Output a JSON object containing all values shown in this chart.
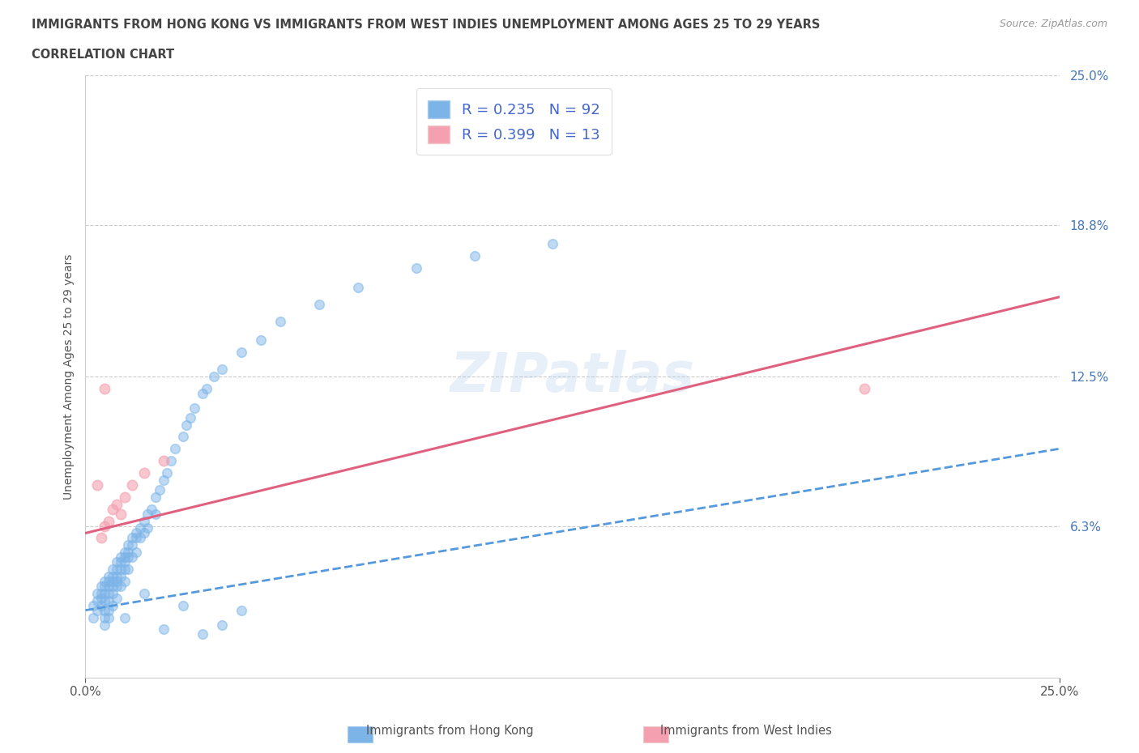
{
  "title_line1": "IMMIGRANTS FROM HONG KONG VS IMMIGRANTS FROM WEST INDIES UNEMPLOYMENT AMONG AGES 25 TO 29 YEARS",
  "title_line2": "CORRELATION CHART",
  "source_text": "Source: ZipAtlas.com",
  "ylabel": "Unemployment Among Ages 25 to 29 years",
  "xlim": [
    0.0,
    0.25
  ],
  "ylim": [
    0.0,
    0.25
  ],
  "ytick_labels": [
    "6.3%",
    "12.5%",
    "18.8%",
    "25.0%"
  ],
  "ytick_values": [
    0.063,
    0.125,
    0.188,
    0.25
  ],
  "hk_color": "#7cb4e8",
  "wi_color": "#f4a0b0",
  "hk_line_color": "#5599dd",
  "wi_line_color": "#e06080",
  "hk_R": 0.235,
  "hk_N": 92,
  "wi_R": 0.399,
  "wi_N": 13,
  "watermark": "ZIPatlas",
  "legend_label_hk": "Immigrants from Hong Kong",
  "legend_label_wi": "Immigrants from West Indies",
  "hk_scatter_x": [
    0.002,
    0.002,
    0.003,
    0.003,
    0.003,
    0.004,
    0.004,
    0.004,
    0.004,
    0.005,
    0.005,
    0.005,
    0.005,
    0.005,
    0.005,
    0.005,
    0.006,
    0.006,
    0.006,
    0.006,
    0.006,
    0.006,
    0.006,
    0.007,
    0.007,
    0.007,
    0.007,
    0.007,
    0.007,
    0.008,
    0.008,
    0.008,
    0.008,
    0.008,
    0.008,
    0.009,
    0.009,
    0.009,
    0.009,
    0.009,
    0.01,
    0.01,
    0.01,
    0.01,
    0.01,
    0.011,
    0.011,
    0.011,
    0.011,
    0.012,
    0.012,
    0.012,
    0.013,
    0.013,
    0.013,
    0.014,
    0.014,
    0.015,
    0.015,
    0.016,
    0.016,
    0.017,
    0.018,
    0.018,
    0.019,
    0.02,
    0.021,
    0.022,
    0.023,
    0.025,
    0.026,
    0.027,
    0.028,
    0.03,
    0.031,
    0.033,
    0.035,
    0.04,
    0.045,
    0.05,
    0.06,
    0.07,
    0.085,
    0.1,
    0.12,
    0.01,
    0.015,
    0.02,
    0.025,
    0.03,
    0.035,
    0.04
  ],
  "hk_scatter_y": [
    0.03,
    0.025,
    0.035,
    0.032,
    0.028,
    0.038,
    0.035,
    0.033,
    0.03,
    0.04,
    0.038,
    0.035,
    0.032,
    0.028,
    0.025,
    0.022,
    0.042,
    0.04,
    0.038,
    0.035,
    0.032,
    0.028,
    0.025,
    0.045,
    0.042,
    0.04,
    0.038,
    0.035,
    0.03,
    0.048,
    0.045,
    0.042,
    0.04,
    0.038,
    0.033,
    0.05,
    0.048,
    0.045,
    0.042,
    0.038,
    0.052,
    0.05,
    0.048,
    0.045,
    0.04,
    0.055,
    0.052,
    0.05,
    0.045,
    0.058,
    0.055,
    0.05,
    0.06,
    0.058,
    0.052,
    0.062,
    0.058,
    0.065,
    0.06,
    0.068,
    0.062,
    0.07,
    0.075,
    0.068,
    0.078,
    0.082,
    0.085,
    0.09,
    0.095,
    0.1,
    0.105,
    0.108,
    0.112,
    0.118,
    0.12,
    0.125,
    0.128,
    0.135,
    0.14,
    0.148,
    0.155,
    0.162,
    0.17,
    0.175,
    0.18,
    0.025,
    0.035,
    0.02,
    0.03,
    0.018,
    0.022,
    0.028
  ],
  "wi_scatter_x": [
    0.003,
    0.004,
    0.005,
    0.005,
    0.006,
    0.007,
    0.008,
    0.009,
    0.01,
    0.012,
    0.015,
    0.02,
    0.2
  ],
  "wi_scatter_y": [
    0.08,
    0.058,
    0.063,
    0.12,
    0.065,
    0.07,
    0.072,
    0.068,
    0.075,
    0.08,
    0.085,
    0.09,
    0.12
  ],
  "hk_trend_x0": 0.0,
  "hk_trend_y0": 0.028,
  "hk_trend_x1": 0.25,
  "hk_trend_y1": 0.095,
  "wi_trend_x0": 0.0,
  "wi_trend_y0": 0.06,
  "wi_trend_x1": 0.25,
  "wi_trend_y1": 0.158
}
